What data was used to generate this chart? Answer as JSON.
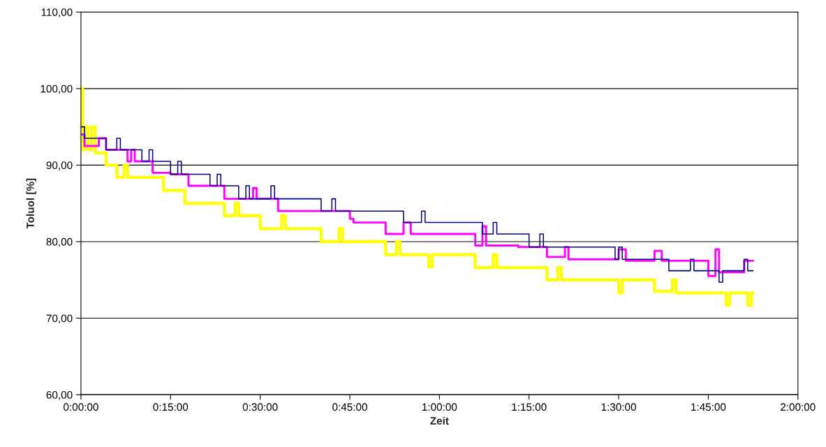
{
  "chart_data": {
    "type": "step",
    "xlabel": "Zeit",
    "ylabel": "Toluol [%]",
    "xlim": [
      0,
      2
    ],
    "ylim": [
      60,
      110
    ],
    "xticks": [
      {
        "value": 0,
        "label": "0:00:00"
      },
      {
        "value": 0.25,
        "label": "0:15:00"
      },
      {
        "value": 0.5,
        "label": "0:30:00"
      },
      {
        "value": 0.75,
        "label": "0:45:00"
      },
      {
        "value": 1,
        "label": "1:00:00"
      },
      {
        "value": 1.25,
        "label": "1:15:00"
      },
      {
        "value": 1.5,
        "label": "1:30:00"
      },
      {
        "value": 1.75,
        "label": "1:45:00"
      },
      {
        "value": 2,
        "label": "2:00:00"
      }
    ],
    "yticks": [
      {
        "value": 60,
        "label": "60,00"
      },
      {
        "value": 70,
        "label": "70,00"
      },
      {
        "value": 80,
        "label": "80,00"
      },
      {
        "value": 90,
        "label": "90,00"
      },
      {
        "value": 100,
        "label": "100,00"
      },
      {
        "value": 110,
        "label": "110,00"
      }
    ],
    "grid": "y",
    "legend": false,
    "marker": "none",
    "line_style": "solid",
    "series": [
      {
        "color": "#ffff00",
        "x": [
          0,
          0.005,
          0.01,
          0.02,
          0.03,
          0.04,
          0.07,
          0.1,
          0.12,
          0.13,
          0.23,
          0.29,
          0.4,
          0.43,
          0.44,
          0.5,
          0.56,
          0.57,
          0.67,
          0.72,
          0.73,
          0.85,
          0.88,
          0.89,
          0.97,
          0.98,
          1.1,
          1.15,
          1.16,
          1.3,
          1.33,
          1.34,
          1.5,
          1.51,
          1.55,
          1.6,
          1.65,
          1.66,
          1.8,
          1.81,
          1.86,
          1.87,
          1.875
        ],
        "values": [
          100,
          92,
          95,
          92,
          95,
          91.6,
          90,
          88.4,
          90,
          88.4,
          86.7,
          85,
          83.4,
          85,
          83.4,
          81.7,
          83.4,
          81.7,
          80,
          81.7,
          80,
          78.3,
          80,
          78.3,
          76.7,
          78.3,
          76.6,
          78.3,
          76.6,
          75,
          76.6,
          75,
          73.3,
          75,
          75,
          73.5,
          75,
          73.3,
          71.7,
          73.3,
          71.7,
          73.3,
          73.3
        ]
      },
      {
        "color": "#ff00ff",
        "x": [
          0,
          0.01,
          0.05,
          0.07,
          0.13,
          0.14,
          0.15,
          0.2,
          0.25,
          0.3,
          0.4,
          0.48,
          0.49,
          0.55,
          0.75,
          0.76,
          0.85,
          0.9,
          0.92,
          1.1,
          1.12,
          1.13,
          1.22,
          1.3,
          1.35,
          1.36,
          1.5,
          1.52,
          1.6,
          1.62,
          1.75,
          1.77,
          1.78,
          1.85,
          1.875
        ],
        "values": [
          94,
          92.5,
          93.5,
          92,
          90.5,
          92,
          90.5,
          89,
          88.8,
          87.3,
          85.6,
          87,
          85.6,
          84,
          83,
          82.5,
          81,
          82.5,
          81,
          79.5,
          82,
          79.5,
          79.3,
          78,
          79.3,
          77.7,
          79,
          77.5,
          78.8,
          77.5,
          75.5,
          79,
          76,
          77.5,
          77.5
        ]
      },
      {
        "color": "#000080",
        "x": [
          0,
          0.01,
          0.07,
          0.1,
          0.11,
          0.17,
          0.19,
          0.2,
          0.25,
          0.27,
          0.28,
          0.36,
          0.38,
          0.39,
          0.44,
          0.46,
          0.47,
          0.53,
          0.54,
          0.67,
          0.7,
          0.71,
          0.9,
          0.95,
          0.96,
          1.12,
          1.15,
          1.16,
          1.25,
          1.28,
          1.29,
          1.49,
          1.5,
          1.51,
          1.64,
          1.7,
          1.71,
          1.78,
          1.79,
          1.85,
          1.86,
          1.875
        ],
        "values": [
          95,
          93.5,
          92,
          93.5,
          92,
          90.5,
          92,
          90.5,
          88.8,
          90.5,
          88.8,
          87.3,
          88.8,
          87.3,
          85.6,
          87.3,
          85.6,
          87.3,
          85.6,
          84,
          85.6,
          84,
          82.5,
          84,
          82.5,
          81,
          82.5,
          81,
          79.3,
          81,
          79.3,
          77.7,
          79.3,
          77.7,
          76.2,
          77.7,
          76.2,
          74.7,
          76.2,
          77.7,
          76.2,
          76.2
        ]
      }
    ]
  }
}
